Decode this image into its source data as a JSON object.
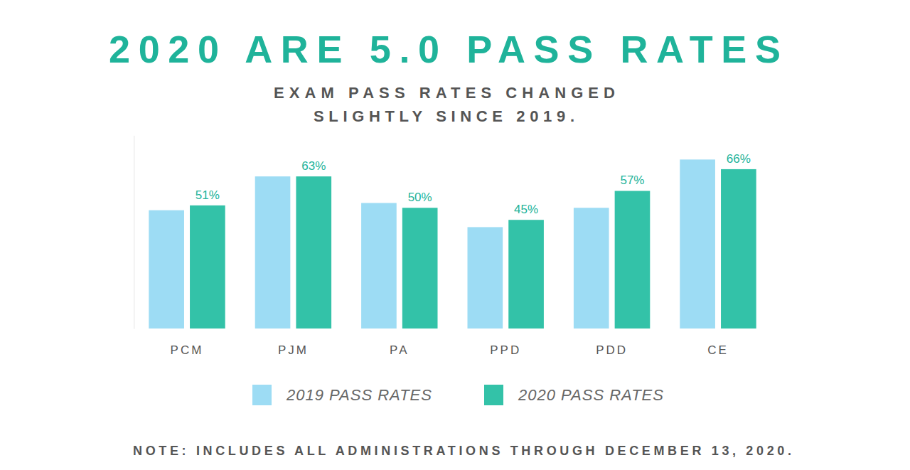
{
  "chart_data": {
    "type": "bar",
    "title": "2020 ARE 5.0 PASS RATES",
    "subtitle": [
      "EXAM PASS RATES CHANGED",
      "SLIGHTLY SINCE 2019."
    ],
    "note": "NOTE: INCLUDES ALL ADMINISTRATIONS THROUGH DECEMBER 13, 2020.",
    "categories": [
      "PCM",
      "PJM",
      "PA",
      "PPD",
      "PDD",
      "CE"
    ],
    "series": [
      {
        "name": "2019 PASS RATES",
        "color": "#9ddcf4",
        "values": [
          49,
          63,
          52,
          42,
          50,
          70
        ]
      },
      {
        "name": "2020 PASS RATES",
        "color": "#33c2a8",
        "values": [
          51,
          63,
          50,
          45,
          57,
          66
        ],
        "data_labels": true,
        "value_labels": [
          "51%",
          "63%",
          "50%",
          "45%",
          "57%",
          "66%"
        ]
      }
    ],
    "ylim": [
      0,
      80
    ],
    "tick_labels": "x",
    "grid": false,
    "legend": "bottom"
  }
}
